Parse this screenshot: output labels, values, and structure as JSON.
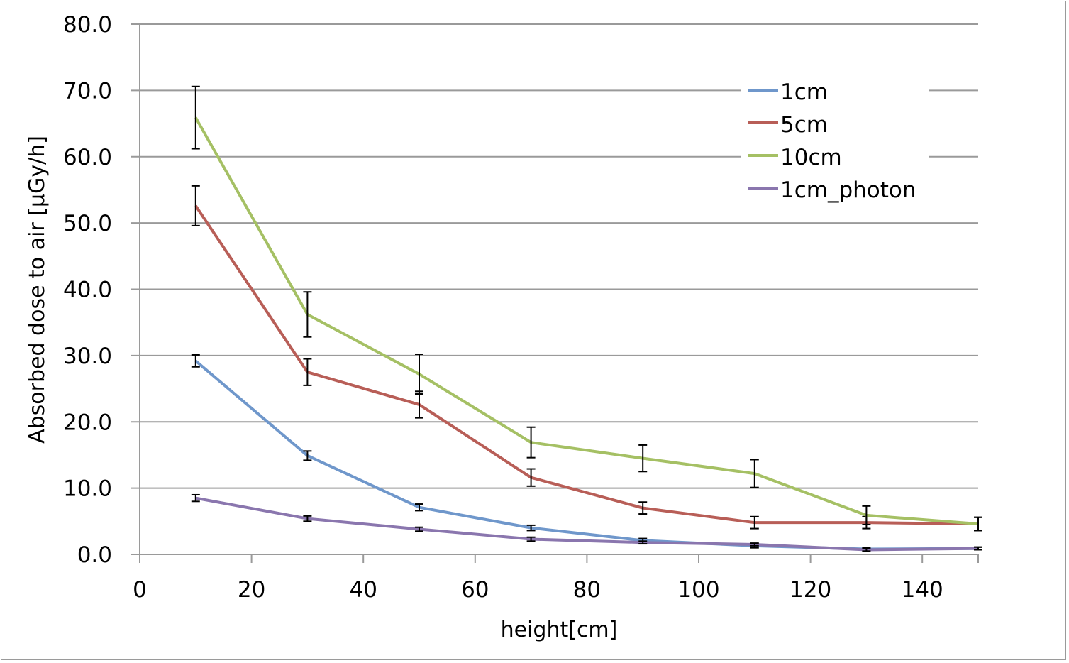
{
  "chart_data": {
    "type": "line",
    "title": "",
    "xlabel": "height[cm]",
    "ylabel": "Absorbed dose to air [μGy/h]",
    "xlim": [
      0,
      150
    ],
    "ylim": [
      0,
      80
    ],
    "xticks": [
      "0",
      "20",
      "40",
      "60",
      "80",
      "100",
      "120",
      "140"
    ],
    "yticks": [
      "0.0",
      "10.0",
      "20.0",
      "30.0",
      "40.0",
      "50.0",
      "60.0",
      "70.0",
      "80.0"
    ],
    "grid": "horizontal",
    "legend_position": "top-right",
    "x": [
      10,
      30,
      50,
      70,
      90,
      110,
      130,
      150
    ],
    "series": [
      {
        "name": "1cm",
        "color": "#6f97cb",
        "values": [
          29.2,
          14.9,
          7.1,
          4.0,
          2.1,
          1.3,
          0.8,
          0.9
        ],
        "errors": [
          0.9,
          0.7,
          0.5,
          0.4,
          0.3,
          0.3,
          0.2,
          0.2
        ]
      },
      {
        "name": "5cm",
        "color": "#b85e57",
        "values": [
          52.6,
          27.5,
          22.6,
          11.6,
          7.0,
          4.8,
          4.8,
          4.6
        ],
        "errors": [
          3.0,
          2.0,
          2.0,
          1.3,
          0.9,
          0.9,
          0.9,
          1.0
        ]
      },
      {
        "name": "10cm",
        "color": "#a5c064",
        "values": [
          65.9,
          36.2,
          27.2,
          16.9,
          14.5,
          12.2,
          5.9,
          4.6
        ],
        "errors": [
          4.7,
          3.4,
          3.0,
          2.3,
          2.0,
          2.1,
          1.4,
          1.0
        ]
      },
      {
        "name": "1cm_photon",
        "color": "#8a76ae",
        "values": [
          8.5,
          5.4,
          3.8,
          2.3,
          1.8,
          1.5,
          0.7,
          0.9
        ],
        "errors": [
          0.5,
          0.4,
          0.3,
          0.3,
          0.2,
          0.2,
          0.2,
          0.2
        ]
      }
    ]
  }
}
